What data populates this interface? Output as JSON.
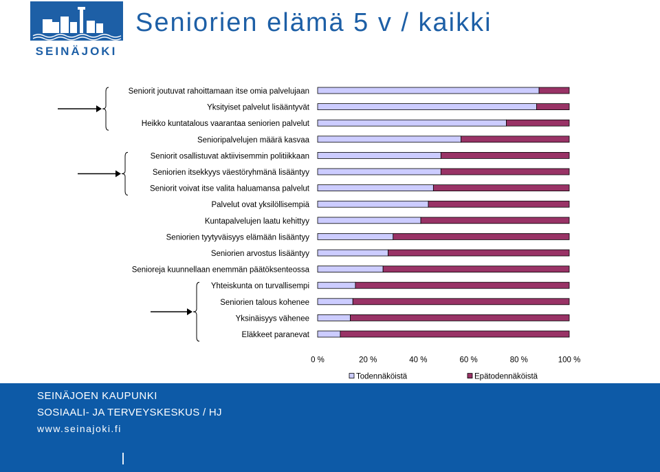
{
  "header": {
    "title": "Seniorien elämä 5 v / kaikki",
    "logo_text": "SEINÄJOKI"
  },
  "colors": {
    "title": "#1d5fa6",
    "footer_bg": "#0d5aa7",
    "series_likely": "#ccccff",
    "series_unlikely": "#993366"
  },
  "chart_data": {
    "type": "bar",
    "orientation": "horizontal",
    "stacked": "percent",
    "categories": [
      "Seniorit joutuvat rahoittamaan itse omia palvelujaan",
      "Yksityiset palvelut lisääntyvät",
      "Heikko kuntatalous vaarantaa seniorien palvelut",
      "Senioripalvelujen määrä kasvaa",
      "Seniorit osallistuvat aktiivisemmin politiikkaan",
      "Seniorien itsekkyys väestöryhmänä lisääntyy",
      "Seniorit voivat itse valita haluamansa palvelut",
      "Palvelut ovat yksilöllisempiä",
      "Kuntapalvelujen laatu kehittyy",
      "Seniorien tyytyväisyys elämään lisääntyy",
      "Seniorien arvostus lisääntyy",
      "Senioreja kuunnellaan enemmän päätöksenteossa",
      "Yhteiskunta on turvallisempi",
      "Seniorien talous kohenee",
      "Yksinäisyys vähenee",
      "Eläkkeet paranevat"
    ],
    "series": [
      {
        "name": "Todennäköistä",
        "values": [
          88,
          87,
          75,
          57,
          49,
          49,
          46,
          44,
          41,
          30,
          28,
          26,
          15,
          14,
          13,
          9
        ]
      },
      {
        "name": "Epätodennäköistä",
        "values": [
          12,
          13,
          25,
          43,
          51,
          51,
          54,
          56,
          59,
          70,
          72,
          74,
          85,
          86,
          87,
          91
        ]
      }
    ],
    "x_ticks": [
      "0 %",
      "20 %",
      "40 %",
      "60 %",
      "80 %",
      "100 %"
    ],
    "xlim": [
      0,
      100
    ],
    "legend_position": "bottom-right",
    "grid": false,
    "annotation_groups": [
      [
        0,
        2
      ],
      [
        4,
        6
      ],
      [
        12,
        15
      ]
    ]
  },
  "footer": {
    "org": "SEINÄJOEN KAUPUNKI",
    "dept": "SOSIAALI- JA TERVEYSKESKUS / HJ",
    "url": "www.seinajoki.fi"
  }
}
